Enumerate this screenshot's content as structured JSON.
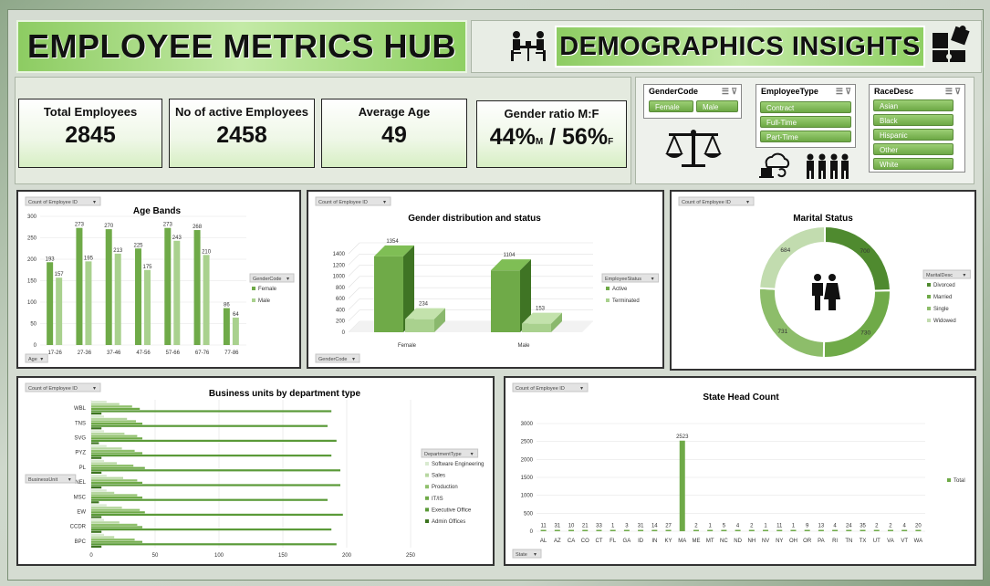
{
  "header": {
    "main_title": "EMPLOYEE METRICS HUB",
    "sub_title": "DEMOGRAPHICS INSIGHTS"
  },
  "kpis": {
    "total_employees": {
      "label": "Total Employees",
      "value": "2845"
    },
    "active_employees": {
      "label": "No of active Employees",
      "value": "2458"
    },
    "average_age": {
      "label": "Average Age",
      "value": "49"
    },
    "gender_ratio": {
      "label": "Gender ratio M:F",
      "male": "44%",
      "male_sub": "M",
      "sep": " / ",
      "female": "56%",
      "female_sub": "F"
    }
  },
  "slicers": {
    "gender": {
      "title": "GenderCode",
      "items": [
        "Female",
        "Male"
      ]
    },
    "employee_type": {
      "title": "EmployeeType",
      "items": [
        "Contract",
        "Full-Time",
        "Part-Time"
      ]
    },
    "race": {
      "title": "RaceDesc",
      "items": [
        "Asian",
        "Black",
        "Hispanic",
        "Other",
        "White"
      ]
    }
  },
  "colors": {
    "dark_green": "#4f8a2f",
    "mid_green": "#6faa48",
    "light_green": "#a9d18e",
    "pale_green": "#c7e0b4"
  },
  "chart_data": [
    {
      "type": "bar",
      "title": "Age Bands",
      "value_button": "Count of Employee ID",
      "axis_button": "Age",
      "legend_button": "GenderCode",
      "categories": [
        "17-26",
        "27-36",
        "37-46",
        "47-56",
        "57-66",
        "67-76",
        "77-86"
      ],
      "series": [
        {
          "name": "Female",
          "values": [
            193,
            273,
            270,
            225,
            273,
            268,
            86
          ]
        },
        {
          "name": "Male",
          "values": [
            157,
            195,
            213,
            175,
            243,
            210,
            64
          ]
        }
      ],
      "ylim": [
        0,
        300
      ],
      "yticks": [
        "0",
        "50",
        "100",
        "150",
        "200",
        "250",
        "300"
      ]
    },
    {
      "type": "bar",
      "title": "Gender distribution and status",
      "value_button": "Count of Employee ID",
      "axis_button": "GenderCode",
      "legend_button": "EmployeeStatus",
      "categories": [
        "Female",
        "Male"
      ],
      "series": [
        {
          "name": "Active",
          "values": [
            1354,
            1104
          ]
        },
        {
          "name": "Terminated",
          "values": [
            234,
            153
          ]
        }
      ],
      "ylim": [
        0,
        1400
      ],
      "yticks": [
        "0",
        "200",
        "400",
        "600",
        "800",
        "1000",
        "1200",
        "1400"
      ]
    },
    {
      "type": "pie",
      "title": "Marital Status",
      "value_button": "Count of Employee ID",
      "legend_button": "MaritalDesc",
      "categories": [
        "Divorced",
        "Married",
        "Single",
        "Widowed"
      ],
      "values": [
        700,
        730,
        731,
        684
      ]
    },
    {
      "type": "bar",
      "title": "Business units by department type",
      "value_button": "Count of Employee ID",
      "axis_button": "BusinessUnit",
      "legend_button": "DepartmentType",
      "categories": [
        "WBL",
        "TNS",
        "SVG",
        "PYZ",
        "PL",
        "NEL",
        "MSC",
        "EW",
        "CCDR",
        "BPC"
      ],
      "series": [
        {
          "name": "Software Engineering",
          "values": [
            12,
            10,
            10,
            12,
            10,
            12,
            12,
            12,
            10,
            10
          ]
        },
        {
          "name": "Sales",
          "values": [
            22,
            28,
            26,
            24,
            20,
            25,
            18,
            24,
            22,
            18
          ]
        },
        {
          "name": "Production",
          "values": [
            32,
            35,
            36,
            34,
            33,
            36,
            36,
            38,
            36,
            34
          ]
        },
        {
          "name": "IT/IS",
          "values": [
            38,
            40,
            40,
            40,
            42,
            40,
            40,
            42,
            40,
            40
          ]
        },
        {
          "name": "Executive Office",
          "values": [
            188,
            185,
            192,
            188,
            195,
            195,
            185,
            197,
            188,
            192
          ]
        },
        {
          "name": "Admin Offices",
          "values": [
            8,
            8,
            6,
            8,
            8,
            8,
            6,
            8,
            8,
            8
          ]
        }
      ],
      "xlim": [
        0,
        250
      ],
      "xticks": [
        "0",
        "50",
        "100",
        "150",
        "200",
        "250"
      ]
    },
    {
      "type": "bar",
      "title": "State Head Count",
      "value_button": "Count of Employee ID",
      "axis_button": "State",
      "categories": [
        "AL",
        "AZ",
        "CA",
        "CO",
        "CT",
        "FL",
        "GA",
        "ID",
        "IN",
        "KY",
        "MA",
        "ME",
        "MT",
        "NC",
        "ND",
        "NH",
        "NV",
        "NY",
        "OH",
        "OR",
        "PA",
        "RI",
        "TN",
        "TX",
        "UT",
        "VA",
        "VT",
        "WA"
      ],
      "series": [
        {
          "name": "Total",
          "values": [
            11,
            31,
            10,
            21,
            33,
            1,
            3,
            31,
            14,
            27,
            2523,
            2,
            1,
            5,
            4,
            2,
            1,
            11,
            1,
            9,
            13,
            4,
            24,
            35,
            2,
            2,
            4,
            20
          ]
        }
      ],
      "ylim": [
        0,
        3000
      ],
      "yticks": [
        "0",
        "500",
        "1000",
        "1500",
        "2000",
        "2500",
        "3000"
      ]
    }
  ]
}
